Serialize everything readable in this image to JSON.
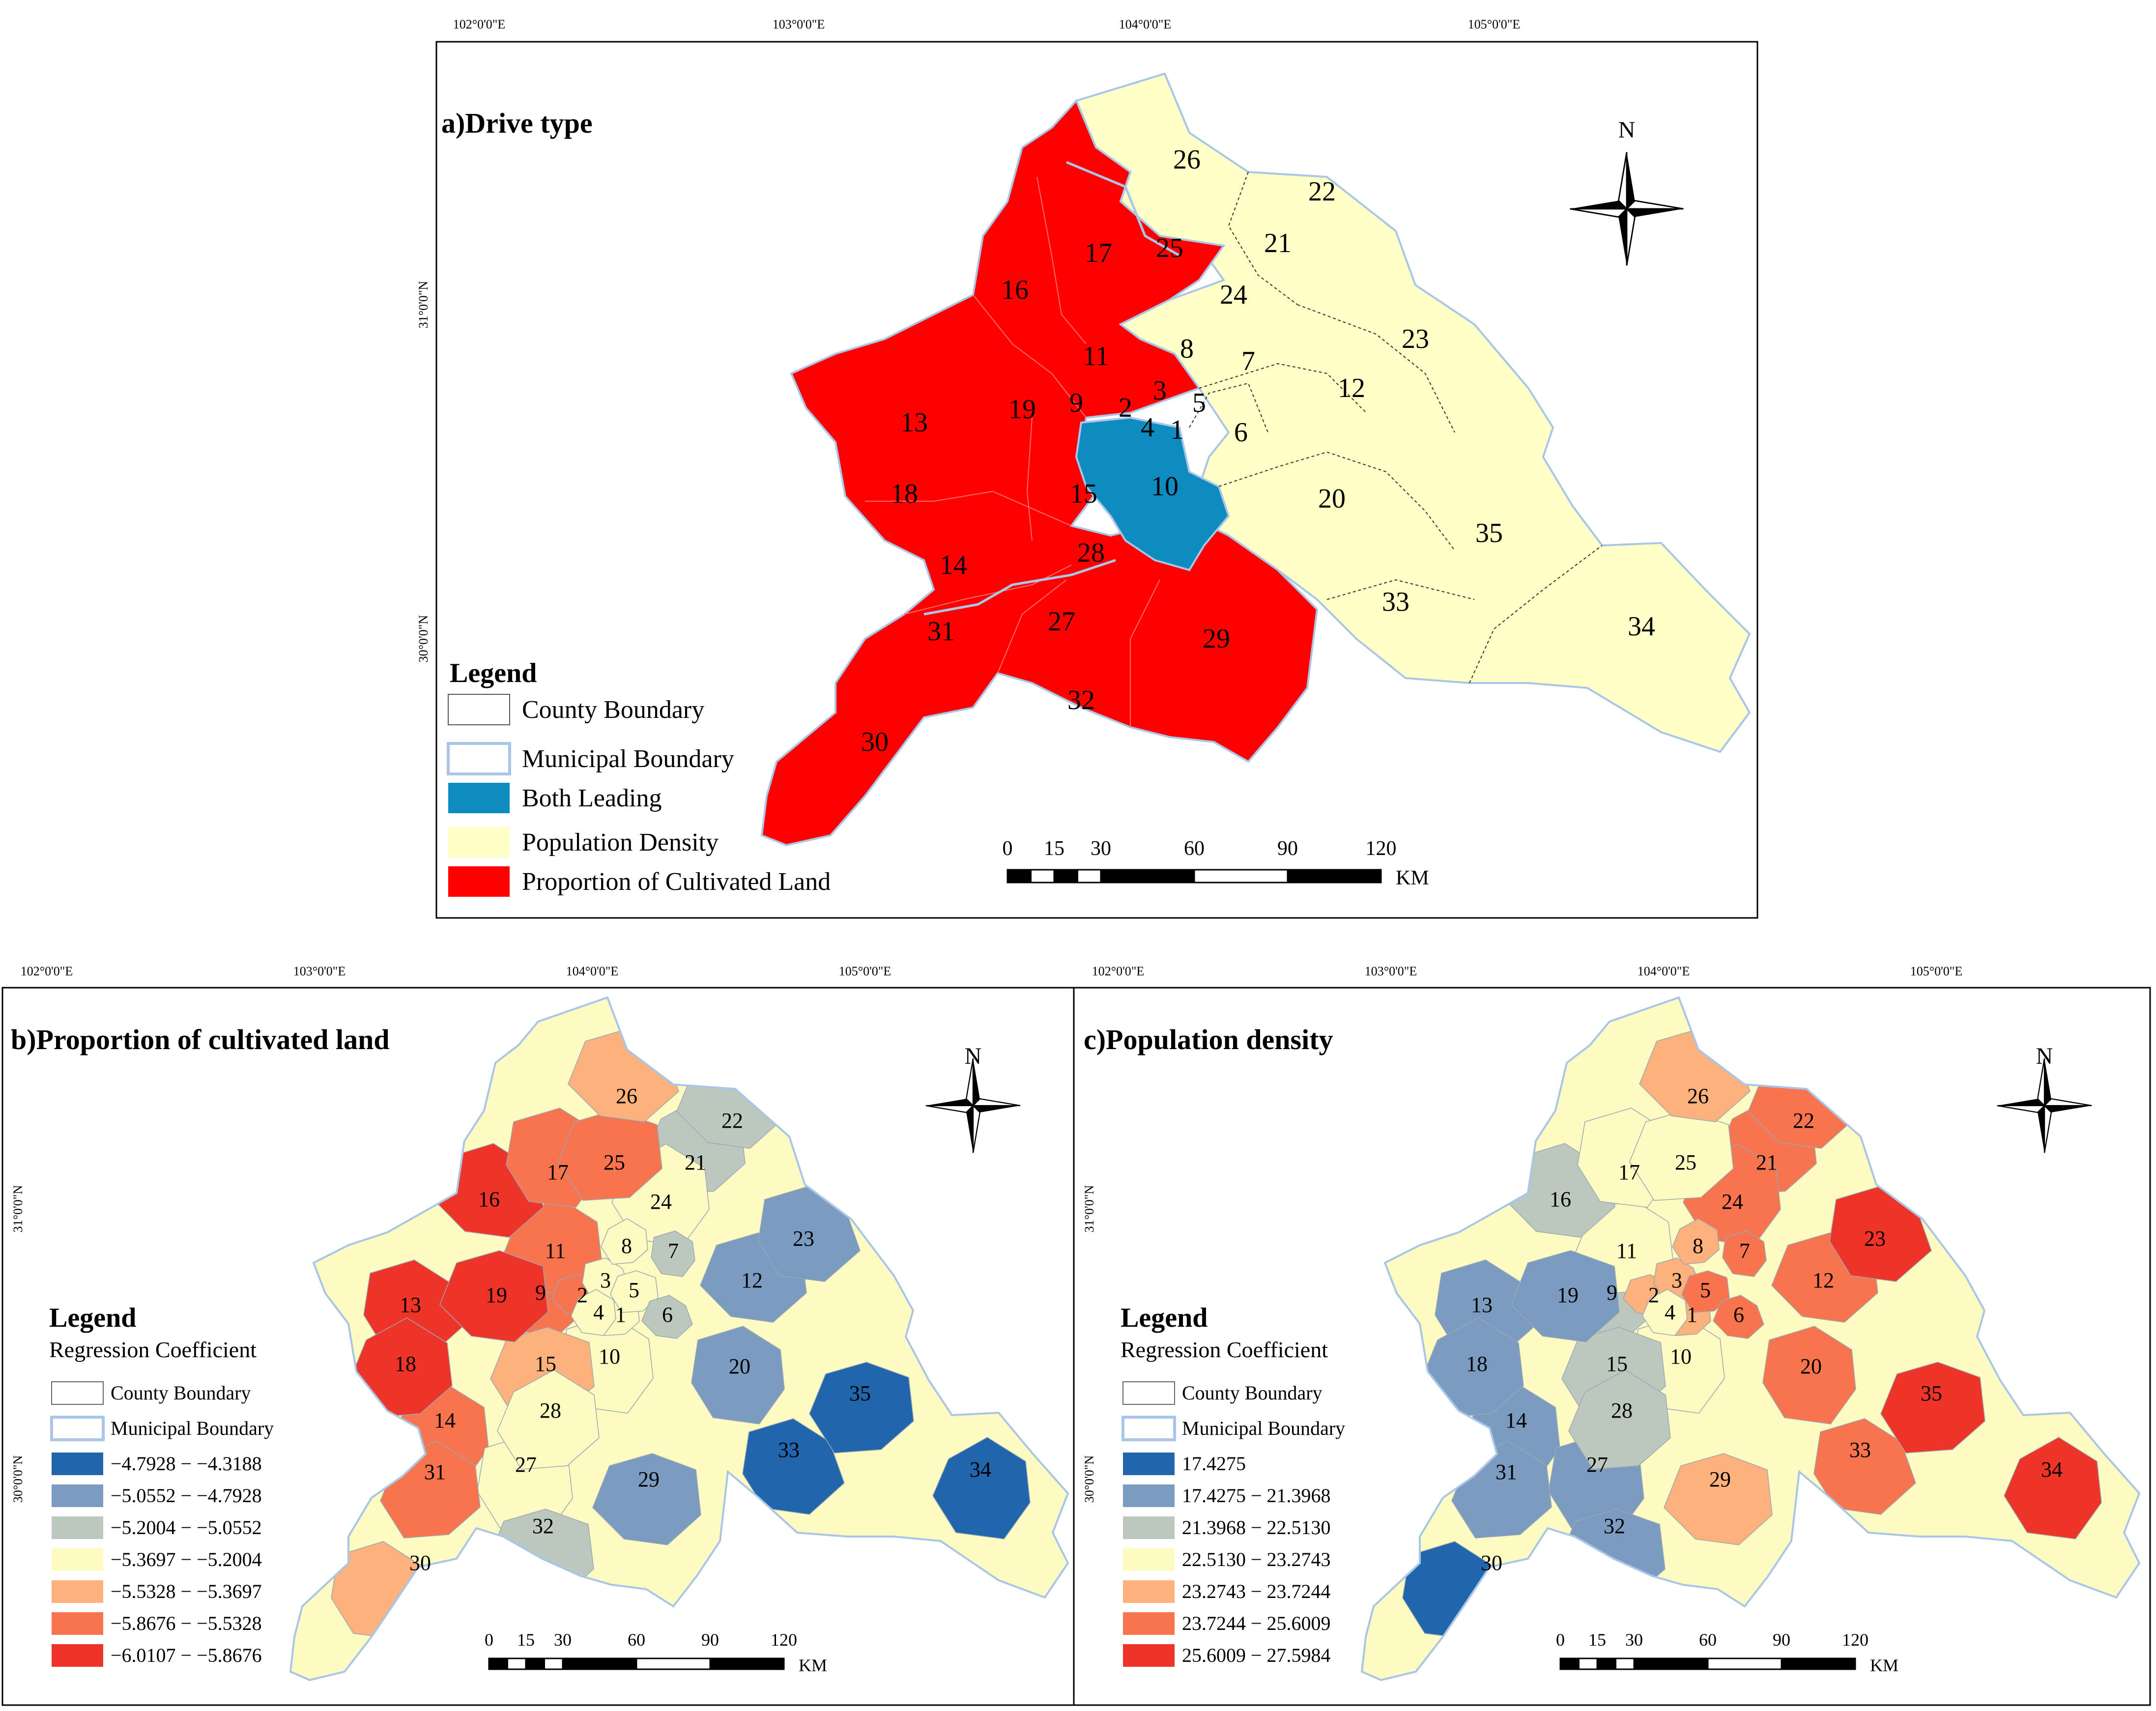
{
  "coordinates": {
    "lon": [
      "102°0'0\"E",
      "103°0'0\"E",
      "104°0'0\"E",
      "105°0'0\"E"
    ],
    "lat": [
      "31°0'0\"N",
      "30°0'0\"N"
    ]
  },
  "panel_a": {
    "title": "a)Drive type",
    "legend_title": "Legend",
    "legend": [
      {
        "label": "County Boundary",
        "color": "#ffffff"
      },
      {
        "label": "Municipal Boundary",
        "color": "#ffffff"
      },
      {
        "label": "Both Leading",
        "color": "#0e8bbf"
      },
      {
        "label": "Population Density",
        "color": "#ffffc8"
      },
      {
        "label": "Proportion of Cultivated Land",
        "color": "#ff0000"
      }
    ]
  },
  "panel_b": {
    "title": "b)Proportion of cultivated land",
    "legend_title": "Legend",
    "legend_subtitle": "Regression Coefficient",
    "boundaries": [
      "County Boundary",
      "Municipal Boundary"
    ],
    "classes": [
      {
        "label": "−4.7928 − −4.3188",
        "color": "#2166ac"
      },
      {
        "label": "−5.0552 − −4.7928",
        "color": "#7b9cc0"
      },
      {
        "label": "−5.2004 − −5.0552",
        "color": "#bcc8bd"
      },
      {
        "label": "−5.3697 − −5.2004",
        "color": "#fdfbc2"
      },
      {
        "label": "−5.5328 − −5.3697",
        "color": "#fdb27e"
      },
      {
        "label": "−5.8676 − −5.5328",
        "color": "#f7744e"
      },
      {
        "label": "−6.0107 − −5.8676",
        "color": "#ee3428"
      }
    ]
  },
  "panel_c": {
    "title": "c)Population density",
    "legend_title": "Legend",
    "legend_subtitle": "Regression Coefficient",
    "boundaries": [
      "County Boundary",
      "Municipal Boundary"
    ],
    "classes": [
      {
        "label": "17.4275",
        "color": "#2166ac"
      },
      {
        "label": "17.4275 − 21.3968",
        "color": "#7b9cc0"
      },
      {
        "label": "21.3968 − 22.5130",
        "color": "#bcc8bd"
      },
      {
        "label": "22.5130 − 23.2743",
        "color": "#fdfbc2"
      },
      {
        "label": "23.2743 − 23.7244",
        "color": "#fdb27e"
      },
      {
        "label": "23.7244 − 25.6009",
        "color": "#f7744e"
      },
      {
        "label": "25.6009 − 27.5984",
        "color": "#ee3428"
      }
    ]
  },
  "scale": {
    "ticks": [
      "0",
      "15",
      "30",
      "60",
      "90",
      "120"
    ],
    "unit": "KM"
  },
  "north_label": "N",
  "counties": [
    "1",
    "2",
    "3",
    "4",
    "5",
    "6",
    "7",
    "8",
    "9",
    "10",
    "11",
    "12",
    "13",
    "14",
    "15",
    "16",
    "17",
    "18",
    "19",
    "20",
    "21",
    "22",
    "23",
    "24",
    "25",
    "26",
    "27",
    "28",
    "29",
    "30",
    "31",
    "32",
    "33",
    "34",
    "35"
  ],
  "drive_type": {
    "both": [
      "10"
    ],
    "population": [
      "1",
      "3",
      "5",
      "6",
      "7",
      "8",
      "12",
      "20",
      "21",
      "22",
      "23",
      "24",
      "26",
      "33",
      "34",
      "35"
    ],
    "cultivated": [
      "2",
      "4",
      "9",
      "11",
      "13",
      "14",
      "15",
      "16",
      "17",
      "18",
      "19",
      "25",
      "27",
      "28",
      "29",
      "30",
      "31",
      "32"
    ]
  },
  "class_b": {
    "1": 3,
    "2": 5,
    "3": 3,
    "4": 3,
    "5": 3,
    "6": 2,
    "7": 2,
    "8": 3,
    "9": 5,
    "10": 3,
    "11": 5,
    "12": 1,
    "13": 6,
    "14": 5,
    "15": 4,
    "16": 6,
    "17": 5,
    "18": 6,
    "19": 6,
    "20": 1,
    "21": 2,
    "22": 2,
    "23": 1,
    "24": 3,
    "25": 5,
    "26": 4,
    "27": 3,
    "28": 3,
    "29": 1,
    "30": 4,
    "31": 5,
    "32": 2,
    "33": 0,
    "34": 0,
    "35": 0
  },
  "class_c": {
    "1": 4,
    "2": 4,
    "3": 4,
    "4": 3,
    "5": 5,
    "6": 5,
    "7": 5,
    "8": 4,
    "9": 2,
    "10": 3,
    "11": 3,
    "12": 5,
    "13": 1,
    "14": 1,
    "15": 2,
    "16": 2,
    "17": 3,
    "18": 1,
    "19": 1,
    "20": 5,
    "21": 5,
    "22": 5,
    "23": 6,
    "24": 5,
    "25": 3,
    "26": 4,
    "27": 1,
    "28": 2,
    "29": 4,
    "30": 0,
    "31": 1,
    "32": 1,
    "33": 5,
    "34": 6,
    "35": 6
  }
}
